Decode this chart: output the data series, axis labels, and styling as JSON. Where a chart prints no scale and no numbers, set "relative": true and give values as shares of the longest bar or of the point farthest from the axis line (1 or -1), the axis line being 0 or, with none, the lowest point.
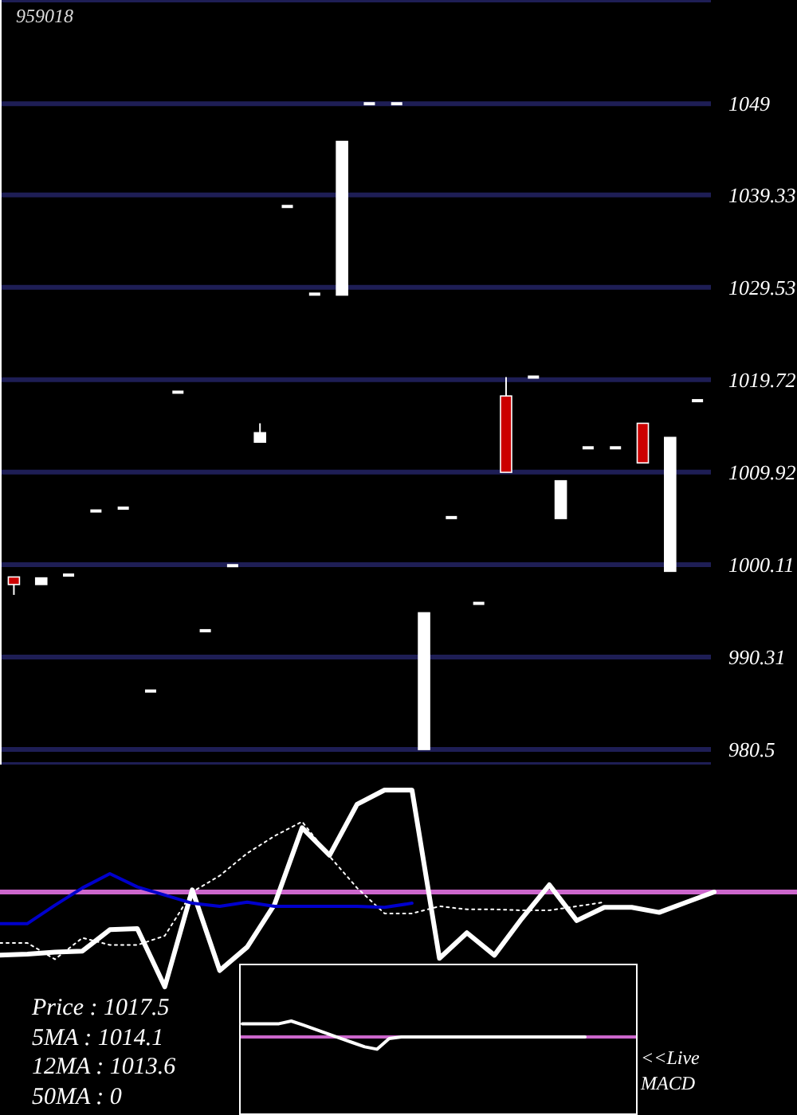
{
  "chart_data": [
    {
      "type": "candlestick",
      "title": "959018",
      "categories": [
        null,
        null,
        null,
        null,
        null,
        null,
        null,
        null,
        null,
        null,
        null,
        null,
        null,
        null,
        null,
        null,
        null,
        null,
        null,
        null,
        null,
        null,
        null,
        null,
        null,
        null
      ],
      "ohlc": [
        [
          998.8,
          998.8,
          996.9,
          998.0
        ],
        [
          998.0,
          998.7,
          998.0,
          998.7
        ],
        [
          999.0,
          999.0,
          999.0,
          999.0
        ],
        [
          1005.8,
          1005.8,
          1005.8,
          1005.8
        ],
        [
          1006.1,
          1006.1,
          1006.1,
          1006.1
        ],
        [
          986.7,
          986.7,
          986.7,
          986.7
        ],
        [
          1018.4,
          1018.4,
          1018.4,
          1018.4
        ],
        [
          993.1,
          993.1,
          993.1,
          993.1
        ],
        [
          1000.0,
          1000.0,
          1000.0,
          1000.0
        ],
        [
          1013.1,
          1015.1,
          1013.1,
          1014.1
        ],
        [
          1038.1,
          1038.1,
          1038.1,
          1038.1
        ],
        [
          1028.8,
          1028.8,
          1028.8,
          1028.8
        ],
        [
          1028.7,
          1045.0,
          1028.7,
          1045.0
        ],
        [
          1049.0,
          1049.0,
          1049.0,
          1049.0
        ],
        [
          1049.0,
          1049.0,
          1049.0,
          1049.0
        ],
        [
          980.5,
          995.0,
          980.5,
          995.0
        ],
        [
          1005.1,
          1005.1,
          1005.1,
          1005.1
        ],
        [
          996.0,
          996.0,
          996.0,
          996.0
        ],
        [
          1018.0,
          1020.0,
          1009.9,
          1009.9
        ],
        [
          1020.0,
          1020.0,
          1020.0,
          1020.0
        ],
        [
          1005.0,
          1009.0,
          1005.0,
          1009.0
        ],
        [
          1012.5,
          1012.5,
          1012.5,
          1012.5
        ],
        [
          1012.5,
          1012.5,
          1012.5,
          1012.5
        ],
        [
          1015.1,
          1015.1,
          1010.9,
          1010.9
        ],
        [
          999.4,
          1013.6,
          999.4,
          1013.6
        ],
        [
          1017.5,
          1017.5,
          1017.5,
          1017.5
        ]
      ],
      "colors": [
        "#cc0000",
        "#ffffff",
        "#ffffff",
        "#ffffff",
        "#ffffff",
        "#ffffff",
        "#ffffff",
        "#ffffff",
        "#ffffff",
        "#ffffff",
        "#ffffff",
        "#ffffff",
        "#ffffff",
        "#ffffff",
        "#ffffff",
        "#ffffff",
        "#ffffff",
        "#ffffff",
        "#cc0000",
        "#ffffff",
        "#ffffff",
        "#ffffff",
        "#ffffff",
        "#cc0000",
        "#ffffff",
        "#ffffff"
      ],
      "ylim": [
        978.9,
        1060
      ],
      "yticks": [
        980.5,
        990.31,
        1000.11,
        1009.92,
        1019.72,
        1029.53,
        1039.33,
        1049
      ],
      "grid": "y",
      "tick_labels": "y"
    },
    {
      "type": "line",
      "relative": true,
      "categories": [
        null,
        null,
        null,
        null,
        null,
        null,
        null,
        null,
        null,
        null,
        null,
        null,
        null,
        null,
        null,
        null,
        null,
        null,
        null,
        null,
        null,
        null,
        null,
        null,
        null,
        null,
        null
      ],
      "series": [
        {
          "color": "#ffffff",
          "line_style": "solid",
          "values": [
            -0.62,
            -0.61,
            -0.59,
            -0.58,
            -0.37,
            -0.36,
            -0.93,
            0.02,
            -0.77,
            -0.54,
            -0.12,
            0.63,
            0.36,
            0.86,
            1,
            1,
            -0.65,
            -0.4,
            -0.62,
            -0.26,
            0.07,
            -0.28,
            -0.15,
            -0.15,
            -0.2,
            -0.1,
            0
          ]
        },
        {
          "color": "#ffffff",
          "line_style": "dotted",
          "values": [
            -0.5,
            -0.5,
            -0.66,
            -0.45,
            -0.52,
            -0.52,
            -0.43,
            0,
            0.16,
            0.38,
            0.55,
            0.69,
            0.35,
            0.04,
            -0.21,
            -0.21,
            -0.14,
            -0.17,
            -0.17,
            -0.18,
            -0.18,
            -0.14,
            -0.1,
            null,
            null,
            null,
            null
          ]
        },
        {
          "color": "#0000cc",
          "line_style": "solid",
          "values": [
            -0.31,
            -0.31,
            -0.13,
            0.04,
            0.18,
            0.05,
            -0.03,
            -0.11,
            -0.14,
            -0.1,
            -0.14,
            -0.14,
            -0.14,
            -0.14,
            -0.15,
            -0.11,
            null,
            null,
            null,
            null,
            null,
            null,
            null,
            null,
            null,
            null,
            null
          ]
        }
      ],
      "ref_lines": [
        {
          "axis": "y",
          "value": 0,
          "color": "#cc66cc"
        }
      ],
      "marker": "none",
      "tick_labels": false,
      "annotations": [
        "Price : 1017.5",
        "5MA : 1014.1",
        "12MA : 1013.6",
        "50MA : 0"
      ]
    },
    {
      "type": "line",
      "relative": true,
      "categories": [
        null,
        null,
        null,
        null,
        null,
        null,
        null,
        null,
        null,
        null,
        null,
        null,
        null,
        null,
        null,
        null,
        null,
        null,
        null,
        null,
        null,
        null,
        null,
        null,
        null,
        null,
        null,
        null,
        null
      ],
      "series": [
        {
          "color": "#ffffff",
          "line_style": "solid",
          "values": [
            0.83,
            0.83,
            0.83,
            0.83,
            1,
            0.74,
            0.47,
            0.19,
            -0.08,
            -0.35,
            -0.62,
            -0.77,
            -0.1,
            0,
            0,
            0,
            0,
            0,
            0,
            0,
            0,
            0,
            0,
            0,
            0,
            0,
            0,
            0,
            0
          ]
        }
      ],
      "ref_lines": [
        {
          "axis": "y",
          "value": 0,
          "color": "#cc66cc"
        }
      ],
      "marker": "none",
      "tick_labels": false,
      "annotations": [
        "<<Live MACD"
      ]
    }
  ]
}
